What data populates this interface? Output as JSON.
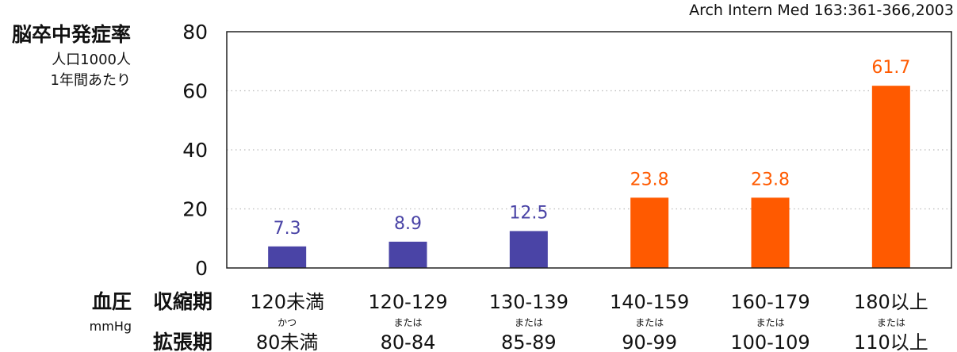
{
  "source": "Arch Intern Med 163:361-366,2003",
  "y_axis": {
    "title": "脳卒中発症率",
    "unit_line1": "人口1000人",
    "unit_line2": "1年間あたり"
  },
  "x_axis": {
    "title": "血圧",
    "unit": "mmHg",
    "row1_label": "収縮期",
    "row2_label": "拡張期"
  },
  "categories": [
    {
      "systolic": "120未満",
      "connector": "かつ",
      "diastolic": "80未満"
    },
    {
      "systolic": "120-129",
      "connector": "または",
      "diastolic": "80-84"
    },
    {
      "systolic": "130-139",
      "connector": "または",
      "diastolic": "85-89"
    },
    {
      "systolic": "140-159",
      "connector": "または",
      "diastolic": "90-99"
    },
    {
      "systolic": "160-179",
      "connector": "または",
      "diastolic": "100-109"
    },
    {
      "systolic": "180以上",
      "connector": "または",
      "diastolic": "110以上"
    }
  ],
  "colors": {
    "normal": "#4a44a6",
    "high": "#ff5a00",
    "axis": "#222222",
    "grid": "#bbbbbb"
  },
  "chart_data": {
    "type": "bar",
    "categories": [
      "120未満/80未満",
      "120-129/80-84",
      "130-139/85-89",
      "140-159/90-99",
      "160-179/100-109",
      "180以上/110以上"
    ],
    "values": [
      7.3,
      8.9,
      12.5,
      23.8,
      23.8,
      61.7
    ],
    "value_labels": [
      "7.3",
      "8.9",
      "12.5",
      "23.8",
      "23.8",
      "61.7"
    ],
    "bar_colors": [
      "#4a44a6",
      "#4a44a6",
      "#4a44a6",
      "#ff5a00",
      "#ff5a00",
      "#ff5a00"
    ],
    "ylim": [
      0,
      80
    ],
    "yticks": [
      0,
      20,
      40,
      60,
      80
    ],
    "ytick_labels": [
      "0",
      "20",
      "40",
      "60",
      "80"
    ],
    "grid": "horizontal dotted",
    "title": "",
    "xlabel": "血圧",
    "ylabel": "脳卒中発症率"
  }
}
